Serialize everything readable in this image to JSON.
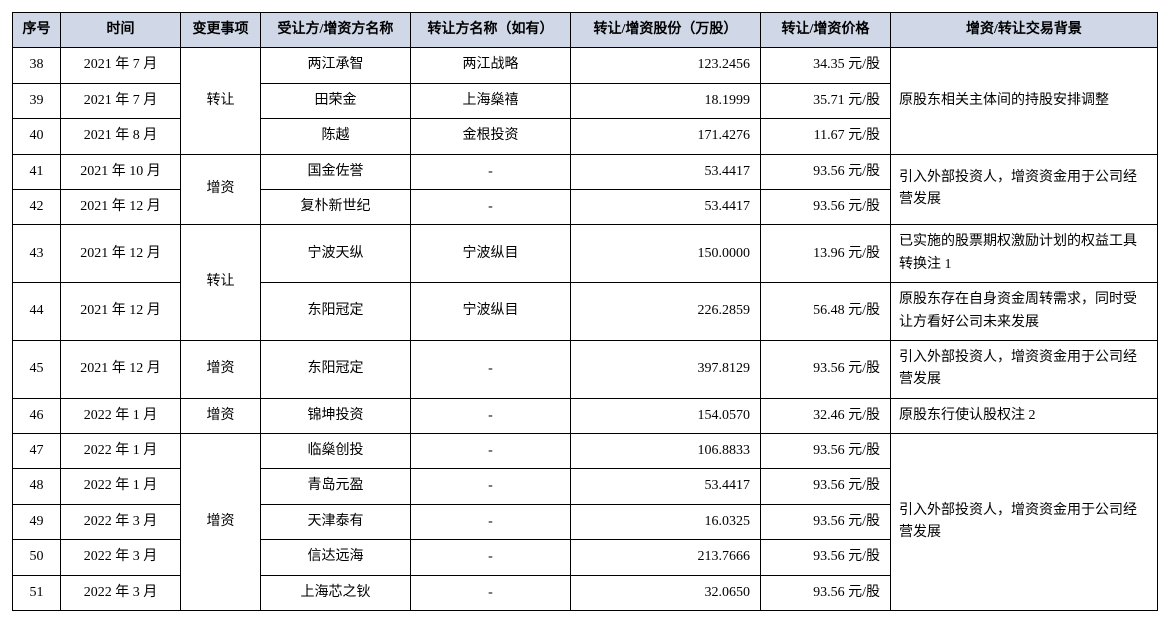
{
  "table": {
    "headers": {
      "seq": "序号",
      "time": "时间",
      "type": "变更事项",
      "recipient": "受让方/增资方名称",
      "transferor": "转让方名称（如有）",
      "shares": "转让/增资股份（万股）",
      "price": "转让/增资价格",
      "background": "增资/转让交易背景"
    },
    "rows": [
      {
        "seq": "38",
        "time": "2021 年 7 月",
        "recipient": "两江承智",
        "transferor": "两江战略",
        "shares": "123.2456",
        "price": "34.35 元/股"
      },
      {
        "seq": "39",
        "time": "2021 年 7 月",
        "recipient": "田荣金",
        "transferor": "上海燊禧",
        "shares": "18.1999",
        "price": "35.71 元/股"
      },
      {
        "seq": "40",
        "time": "2021 年 8 月",
        "recipient": "陈越",
        "transferor": "金根投资",
        "shares": "171.4276",
        "price": "11.67 元/股"
      },
      {
        "seq": "41",
        "time": "2021 年 10 月",
        "recipient": "国金佐誉",
        "transferor": "-",
        "shares": "53.4417",
        "price": "93.56 元/股"
      },
      {
        "seq": "42",
        "time": "2021 年 12 月",
        "recipient": "复朴新世纪",
        "transferor": "-",
        "shares": "53.4417",
        "price": "93.56 元/股"
      },
      {
        "seq": "43",
        "time": "2021 年 12 月",
        "recipient": "宁波天纵",
        "transferor": "宁波纵目",
        "shares": "150.0000",
        "price": "13.96 元/股"
      },
      {
        "seq": "44",
        "time": "2021 年 12 月",
        "recipient": "东阳冠定",
        "transferor": "宁波纵目",
        "shares": "226.2859",
        "price": "56.48 元/股"
      },
      {
        "seq": "45",
        "time": "2021 年 12 月",
        "recipient": "东阳冠定",
        "transferor": "-",
        "shares": "397.8129",
        "price": "93.56 元/股"
      },
      {
        "seq": "46",
        "time": "2022 年 1 月",
        "recipient": "锦坤投资",
        "transferor": "-",
        "shares": "154.0570",
        "price": "32.46 元/股"
      },
      {
        "seq": "47",
        "time": "2022 年 1 月",
        "recipient": "临燊创投",
        "transferor": "-",
        "shares": "106.8833",
        "price": "93.56 元/股"
      },
      {
        "seq": "48",
        "time": "2022 年 1 月",
        "recipient": "青岛元盈",
        "transferor": "-",
        "shares": "53.4417",
        "price": "93.56 元/股"
      },
      {
        "seq": "49",
        "time": "2022 年 3 月",
        "recipient": "天津泰有",
        "transferor": "-",
        "shares": "16.0325",
        "price": "93.56 元/股"
      },
      {
        "seq": "50",
        "time": "2022 年 3 月",
        "recipient": "信达远海",
        "transferor": "-",
        "shares": "213.7666",
        "price": "93.56 元/股"
      },
      {
        "seq": "51",
        "time": "2022 年 3 月",
        "recipient": "上海芯之钬",
        "transferor": "-",
        "shares": "32.0650",
        "price": "93.56 元/股"
      }
    ],
    "type_groups": {
      "g1": "转让",
      "g2": "增资",
      "g3": "转让",
      "g4": "增资",
      "g5": "增资",
      "g6": "增资"
    },
    "bg_groups": {
      "b1": "原股东相关主体间的持股安排调整",
      "b2": "引入外部投资人，增资资金用于公司经营发展",
      "b3": "已实施的股票期权激励计划的权益工具转换注 1",
      "b4": "原股东存在自身资金周转需求，同时受让方看好公司未来发展",
      "b5": "引入外部投资人，增资资金用于公司经营发展",
      "b6": "原股东行使认股权注 2",
      "b7": "引入外部投资人，增资资金用于公司经营发展"
    }
  },
  "style": {
    "header_bg": "#d0d8e8",
    "border_color": "#000000",
    "font_family": "SimSun",
    "font_size_pt": 10
  }
}
